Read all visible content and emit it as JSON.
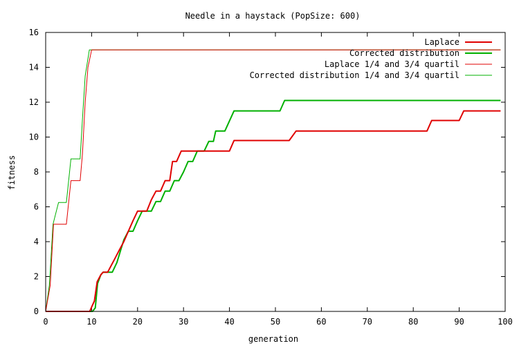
{
  "chart_data": {
    "type": "line",
    "title": "Needle in a haystack (PopSize: 600)",
    "xlabel": "generation",
    "ylabel": "fitness",
    "xlim": [
      0,
      100
    ],
    "ylim": [
      0,
      16
    ],
    "xticks": [
      0,
      10,
      20,
      30,
      40,
      50,
      60,
      70,
      80,
      90,
      100
    ],
    "yticks": [
      0,
      2,
      4,
      6,
      8,
      10,
      12,
      14,
      16
    ],
    "grid": false,
    "legend_position": "top-right",
    "series": [
      {
        "name": "Laplace",
        "color": "#e00000",
        "thick": true,
        "points": [
          [
            0,
            0
          ],
          [
            9.6,
            0
          ],
          [
            10,
            0.25
          ],
          [
            10.6,
            0.6
          ],
          [
            11.2,
            1.7
          ],
          [
            12,
            2.1
          ],
          [
            12.5,
            2.25
          ],
          [
            13.5,
            2.25
          ],
          [
            15,
            3.0
          ],
          [
            16,
            3.5
          ],
          [
            17,
            4.0
          ],
          [
            18,
            4.6
          ],
          [
            19,
            5.2
          ],
          [
            20,
            5.75
          ],
          [
            22,
            5.75
          ],
          [
            23,
            6.4
          ],
          [
            24,
            6.9
          ],
          [
            25,
            6.9
          ],
          [
            26,
            7.5
          ],
          [
            27,
            7.5
          ],
          [
            27.6,
            8.6
          ],
          [
            28.5,
            8.6
          ],
          [
            29.5,
            9.2
          ],
          [
            40,
            9.2
          ],
          [
            41,
            9.8
          ],
          [
            53,
            9.8
          ],
          [
            54.5,
            10.35
          ],
          [
            83,
            10.35
          ],
          [
            84,
            10.95
          ],
          [
            90,
            10.95
          ],
          [
            91,
            11.5
          ],
          [
            99,
            11.5
          ]
        ]
      },
      {
        "name": "Corrected distribution",
        "color": "#00b000",
        "thick": true,
        "points": [
          [
            0,
            0
          ],
          [
            10.2,
            0
          ],
          [
            10.8,
            0.2
          ],
          [
            11.3,
            1.6
          ],
          [
            12,
            2.1
          ],
          [
            12.5,
            2.25
          ],
          [
            14.5,
            2.25
          ],
          [
            15.5,
            2.8
          ],
          [
            17,
            4.1
          ],
          [
            18,
            4.6
          ],
          [
            19,
            4.6
          ],
          [
            20,
            5.2
          ],
          [
            21,
            5.75
          ],
          [
            23,
            5.75
          ],
          [
            24,
            6.3
          ],
          [
            25,
            6.3
          ],
          [
            26,
            6.9
          ],
          [
            27,
            6.9
          ],
          [
            28,
            7.5
          ],
          [
            29,
            7.5
          ],
          [
            30,
            8.0
          ],
          [
            31,
            8.6
          ],
          [
            32,
            8.6
          ],
          [
            33,
            9.2
          ],
          [
            34.5,
            9.2
          ],
          [
            35.5,
            9.75
          ],
          [
            36.5,
            9.75
          ],
          [
            37,
            10.35
          ],
          [
            39,
            10.35
          ],
          [
            41,
            11.5
          ],
          [
            51,
            11.5
          ],
          [
            52,
            12.1
          ],
          [
            99,
            12.1
          ]
        ]
      },
      {
        "name": "Laplace 1/4 and 3/4 quartil",
        "color": "#e00000",
        "thick": false,
        "points": [
          [
            0,
            0
          ],
          [
            1,
            1.5
          ],
          [
            1.7,
            5.0
          ],
          [
            4.5,
            5.0
          ],
          [
            5.5,
            7.5
          ],
          [
            7.5,
            7.5
          ],
          [
            8,
            9.0
          ],
          [
            8.6,
            12.0
          ],
          [
            9.2,
            14.0
          ],
          [
            10,
            15.0
          ],
          [
            99,
            15.0
          ]
        ]
      },
      {
        "name": "Corrected distribution 1/4 and 3/4 quartil",
        "color": "#00b000",
        "thick": false,
        "points": [
          [
            0,
            0
          ],
          [
            0.8,
            1.5
          ],
          [
            1.6,
            5.0
          ],
          [
            2.8,
            6.25
          ],
          [
            4.5,
            6.25
          ],
          [
            5.5,
            8.75
          ],
          [
            7.5,
            8.75
          ],
          [
            8,
            11.0
          ],
          [
            8.6,
            13.5
          ],
          [
            9.5,
            15.0
          ],
          [
            99,
            15.0
          ]
        ]
      }
    ]
  }
}
